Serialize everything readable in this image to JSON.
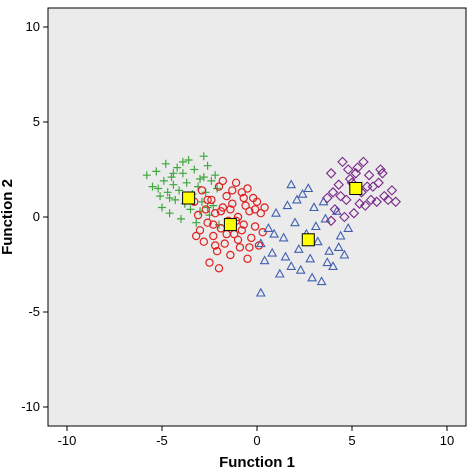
{
  "chart_data": {
    "type": "scatter",
    "title": "",
    "xlabel": "Function 1",
    "ylabel": "Function 2",
    "xlim": [
      -11,
      11
    ],
    "ylim": [
      -11,
      11
    ],
    "xticks": [
      -10,
      -5,
      0,
      5,
      10
    ],
    "yticks": [
      -10,
      -5,
      0,
      5,
      10
    ],
    "grid": false,
    "background": "#ebebeb",
    "series": [
      {
        "marker": "plus",
        "color": "#3fa83f",
        "points": [
          [
            -5.8,
            2.2
          ],
          [
            -5.5,
            1.6
          ],
          [
            -5.3,
            2.4
          ],
          [
            -5.1,
            1.1
          ],
          [
            -5.0,
            0.5
          ],
          [
            -4.9,
            1.9
          ],
          [
            -4.8,
            2.8
          ],
          [
            -4.7,
            1.3
          ],
          [
            -4.6,
            0.2
          ],
          [
            -4.5,
            2.1
          ],
          [
            -4.4,
            1.7
          ],
          [
            -4.3,
            0.9
          ],
          [
            -4.2,
            2.6
          ],
          [
            -4.1,
            1.4
          ],
          [
            -4.0,
            -0.1
          ],
          [
            -3.9,
            2.3
          ],
          [
            -3.8,
            0.7
          ],
          [
            -3.7,
            1.8
          ],
          [
            -3.6,
            3.0
          ],
          [
            -3.5,
            0.4
          ],
          [
            -3.4,
            1.2
          ],
          [
            -3.3,
            2.5
          ],
          [
            -3.2,
            -0.3
          ],
          [
            -3.1,
            1.6
          ],
          [
            -3.0,
            2.0
          ],
          [
            -2.9,
            0.8
          ],
          [
            -2.8,
            3.2
          ],
          [
            -2.7,
            1.3
          ],
          [
            -2.6,
            2.7
          ],
          [
            -2.5,
            0.1
          ],
          [
            -2.4,
            1.9
          ],
          [
            -2.3,
            0.6
          ],
          [
            -2.2,
            2.2
          ],
          [
            -2.1,
            1.5
          ],
          [
            -2.0,
            -0.4
          ],
          [
            -2.6,
            0.5
          ],
          [
            -4.6,
            1.0
          ],
          [
            -3.9,
            2.9
          ],
          [
            -5.2,
            1.5
          ],
          [
            -4.4,
            2.3
          ],
          [
            -3.0,
            0.3
          ],
          [
            -2.8,
            2.1
          ]
        ]
      },
      {
        "marker": "circle",
        "color": "#e02020",
        "points": [
          [
            -3.3,
            0.8
          ],
          [
            -3.1,
            0.1
          ],
          [
            -3.0,
            -0.7
          ],
          [
            -2.9,
            1.4
          ],
          [
            -2.8,
            -1.3
          ],
          [
            -2.7,
            0.4
          ],
          [
            -2.6,
            -0.3
          ],
          [
            -2.5,
            -2.4
          ],
          [
            -2.4,
            0.9
          ],
          [
            -2.3,
            -1.0
          ],
          [
            -2.2,
            0.2
          ],
          [
            -2.1,
            -1.8
          ],
          [
            -2.0,
            1.6
          ],
          [
            -1.9,
            -0.6
          ],
          [
            -1.8,
            0.5
          ],
          [
            -1.7,
            -1.4
          ],
          [
            -1.6,
            1.1
          ],
          [
            -1.5,
            -0.2
          ],
          [
            -1.4,
            -2.0
          ],
          [
            -1.3,
            0.7
          ],
          [
            -1.2,
            -0.9
          ],
          [
            -1.1,
            1.8
          ],
          [
            -1.0,
            0.0
          ],
          [
            -0.9,
            -1.6
          ],
          [
            -0.8,
            1.3
          ],
          [
            -0.7,
            -0.4
          ],
          [
            -0.6,
            0.6
          ],
          [
            -0.5,
            -2.2
          ],
          [
            -0.4,
            0.3
          ],
          [
            -0.3,
            -1.1
          ],
          [
            -0.2,
            1.0
          ],
          [
            -0.1,
            -0.5
          ],
          [
            0.0,
            0.8
          ],
          [
            0.1,
            -1.5
          ],
          [
            0.2,
            0.2
          ],
          [
            0.3,
            -0.8
          ],
          [
            0.4,
            0.5
          ],
          [
            -2.6,
            0.9
          ],
          [
            -2.3,
            -0.4
          ],
          [
            -1.9,
            0.3
          ],
          [
            -1.6,
            -0.9
          ],
          [
            -1.3,
            1.4
          ],
          [
            -1.0,
            -1.2
          ],
          [
            -0.7,
            1.0
          ],
          [
            -0.4,
            -1.6
          ],
          [
            -0.1,
            0.4
          ],
          [
            -2.2,
            -1.5
          ],
          [
            -1.8,
            1.9
          ],
          [
            -1.1,
            -0.2
          ],
          [
            -0.5,
            1.5
          ],
          [
            -3.2,
            -1.0
          ],
          [
            -2.0,
            -2.7
          ],
          [
            -1.4,
            0.4
          ],
          [
            -0.8,
            -0.7
          ]
        ]
      },
      {
        "marker": "triangle",
        "color": "#4060b0",
        "points": [
          [
            0.2,
            -1.4
          ],
          [
            0.4,
            -2.3
          ],
          [
            0.6,
            -0.6
          ],
          [
            0.8,
            -1.9
          ],
          [
            1.0,
            0.2
          ],
          [
            1.2,
            -3.0
          ],
          [
            1.4,
            -1.1
          ],
          [
            1.6,
            0.6
          ],
          [
            1.8,
            -2.6
          ],
          [
            2.0,
            -0.3
          ],
          [
            2.2,
            -1.7
          ],
          [
            2.4,
            1.2
          ],
          [
            2.6,
            -0.9
          ],
          [
            2.8,
            -2.2
          ],
          [
            3.0,
            0.5
          ],
          [
            3.2,
            -1.3
          ],
          [
            3.4,
            -3.4
          ],
          [
            3.6,
            -0.1
          ],
          [
            3.8,
            -1.8
          ],
          [
            4.0,
            -2.6
          ],
          [
            4.2,
            0.3
          ],
          [
            4.4,
            -1.0
          ],
          [
            4.6,
            -2.0
          ],
          [
            4.8,
            -0.6
          ],
          [
            1.8,
            1.7
          ],
          [
            2.1,
            0.9
          ],
          [
            2.7,
            1.5
          ],
          [
            3.1,
            -0.5
          ],
          [
            3.5,
            0.8
          ],
          [
            2.3,
            -2.8
          ],
          [
            1.5,
            -2.1
          ],
          [
            2.9,
            -3.2
          ],
          [
            0.2,
            -4.0
          ],
          [
            0.9,
            -0.9
          ],
          [
            3.7,
            -2.4
          ],
          [
            4.3,
            -1.6
          ]
        ]
      },
      {
        "marker": "diamond",
        "color": "#7a2a8a",
        "points": [
          [
            3.7,
            1.0
          ],
          [
            3.9,
            2.3
          ],
          [
            4.1,
            0.4
          ],
          [
            4.3,
            1.7
          ],
          [
            4.5,
            2.9
          ],
          [
            4.7,
            0.9
          ],
          [
            4.9,
            2.0
          ],
          [
            5.1,
            0.2
          ],
          [
            5.3,
            2.6
          ],
          [
            5.5,
            1.3
          ],
          [
            5.7,
            0.6
          ],
          [
            5.9,
            2.2
          ],
          [
            6.1,
            1.6
          ],
          [
            6.3,
            0.8
          ],
          [
            6.5,
            2.5
          ],
          [
            6.7,
            1.1
          ],
          [
            6.9,
            0.9
          ],
          [
            7.1,
            1.4
          ],
          [
            7.3,
            0.8
          ],
          [
            4.0,
            1.3
          ],
          [
            4.6,
            0.0
          ],
          [
            5.0,
            1.8
          ],
          [
            5.6,
            2.9
          ],
          [
            6.0,
            0.9
          ],
          [
            6.4,
            1.8
          ],
          [
            4.4,
            1.1
          ],
          [
            5.4,
            0.7
          ],
          [
            5.8,
            1.6
          ],
          [
            6.6,
            2.3
          ],
          [
            4.8,
            2.5
          ],
          [
            3.9,
            -0.2
          ],
          [
            5.2,
            2.3
          ]
        ]
      }
    ],
    "centroids": {
      "marker": "square",
      "color": "#ffff00",
      "stroke": "#000000",
      "points": [
        [
          -3.6,
          1.0
        ],
        [
          -1.4,
          -0.4
        ],
        [
          2.7,
          -1.2
        ],
        [
          5.2,
          1.5
        ]
      ]
    }
  }
}
